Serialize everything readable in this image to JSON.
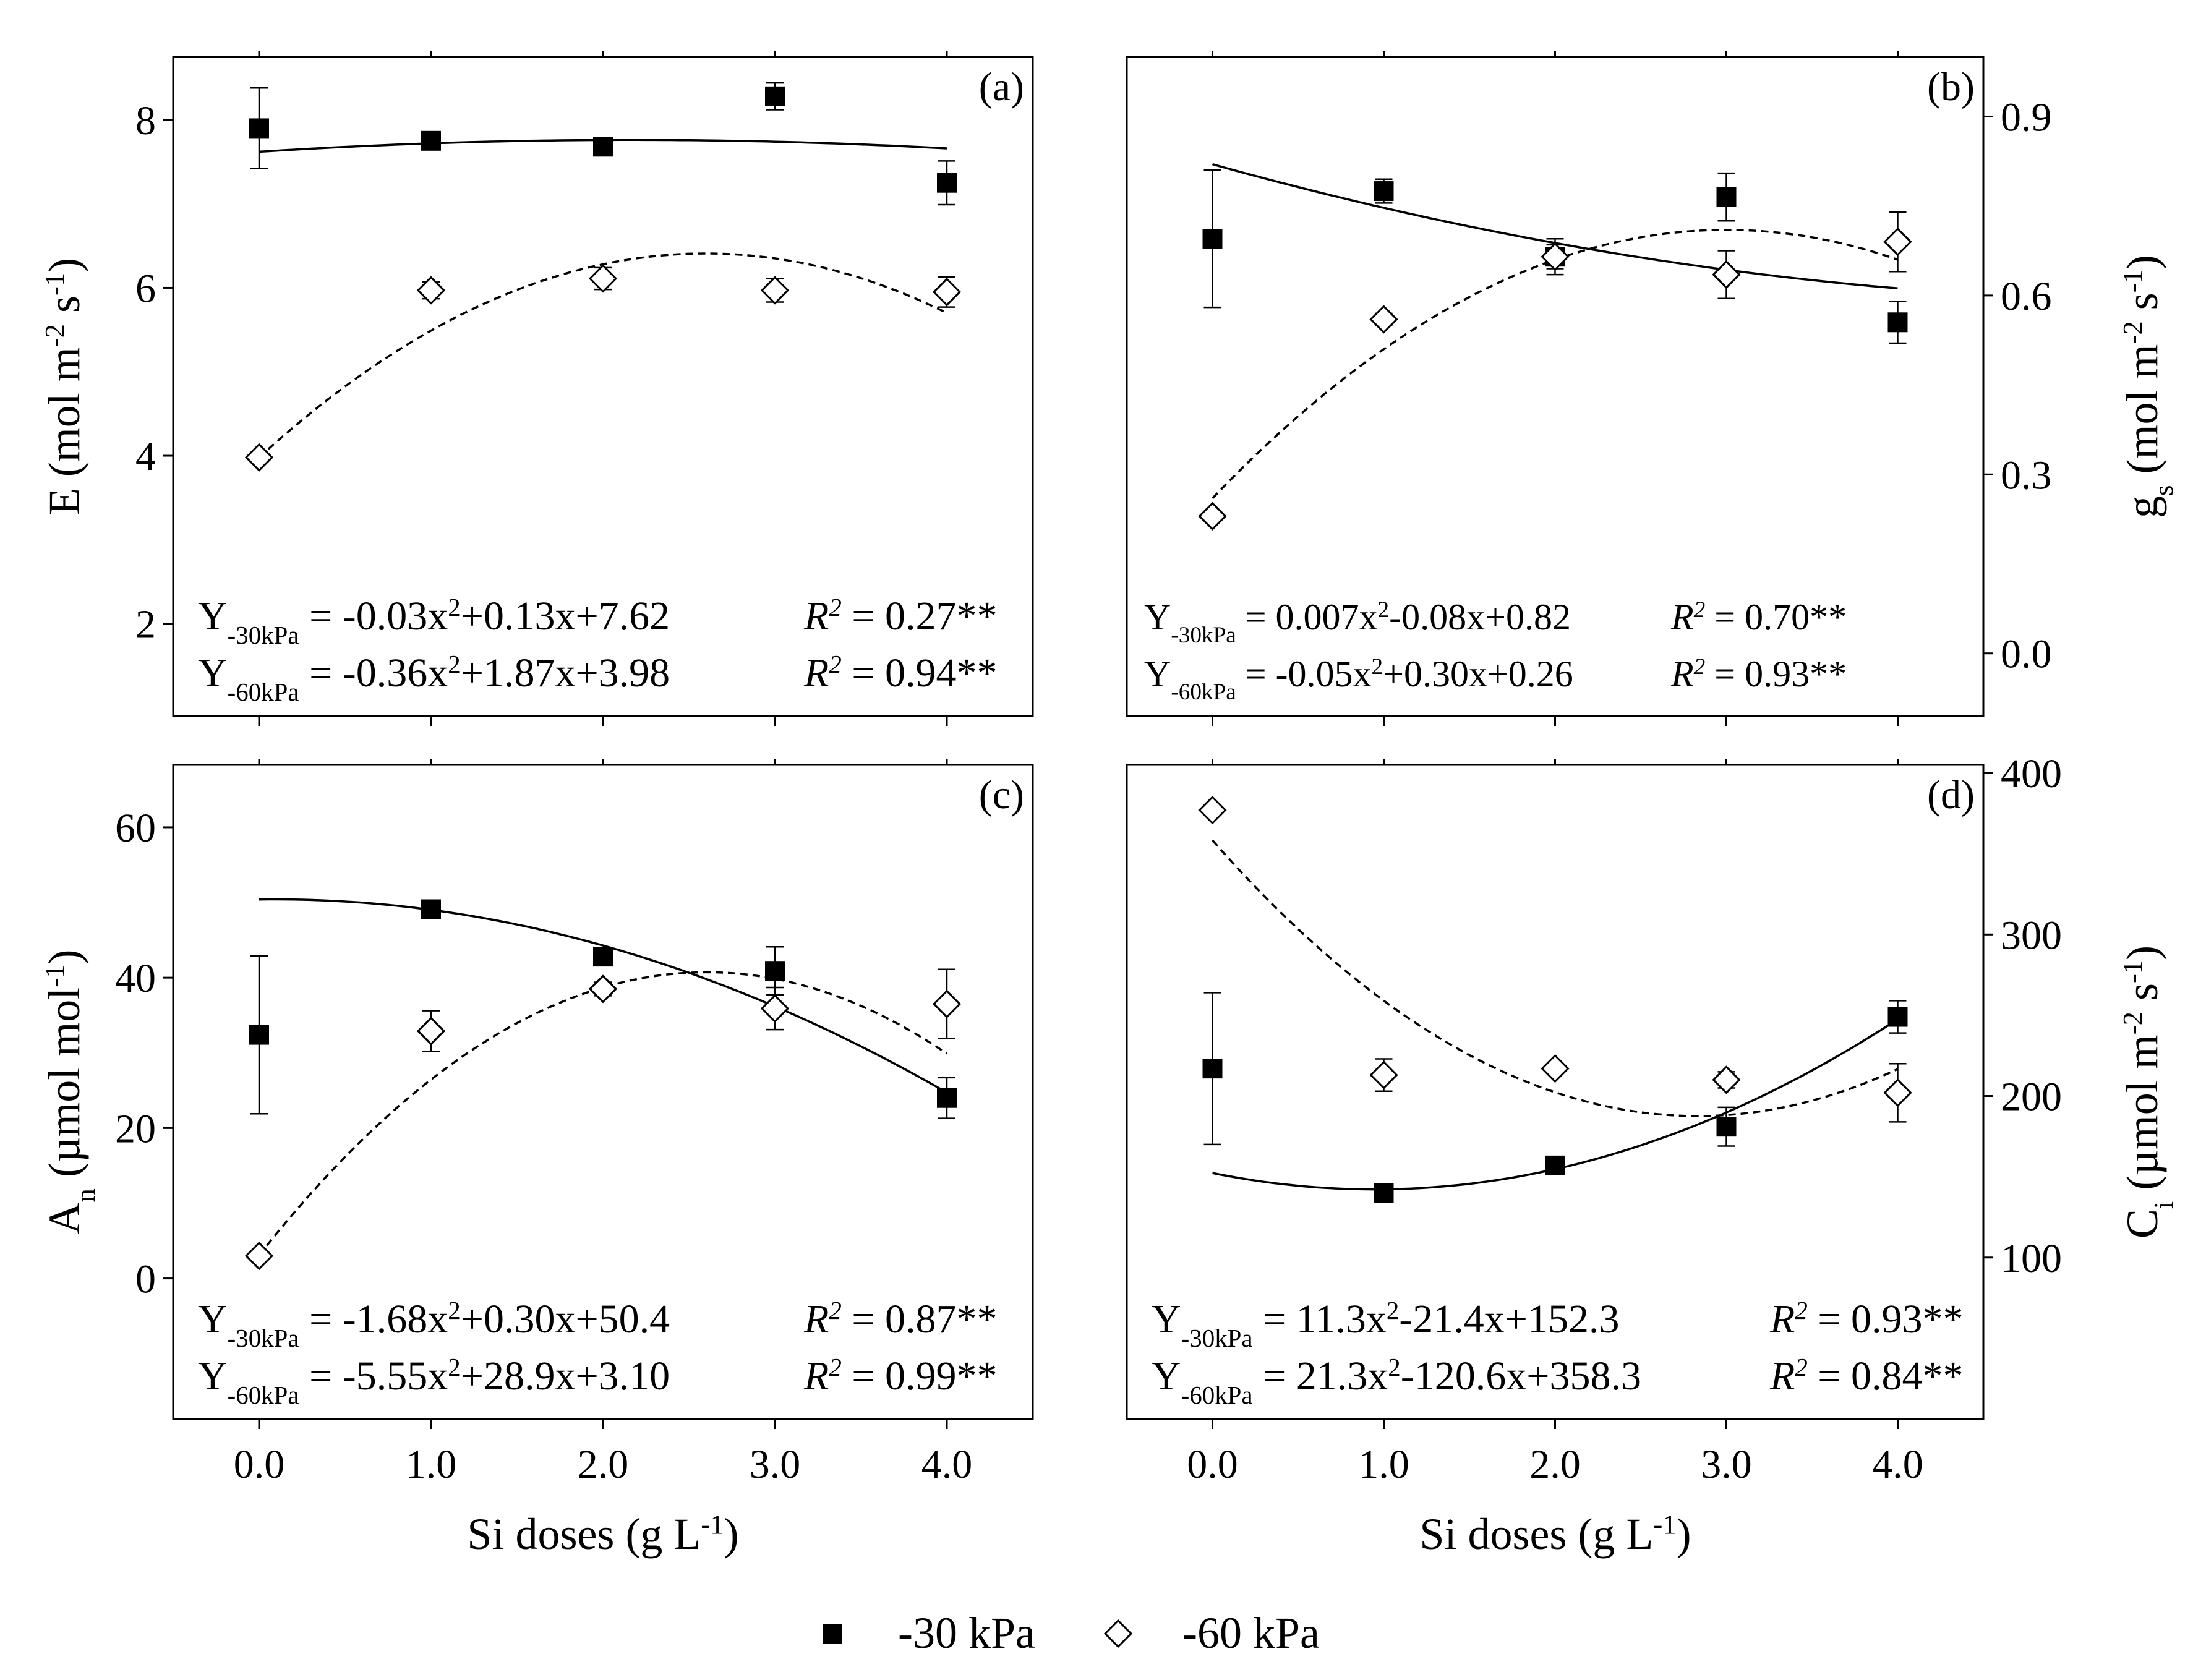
{
  "figure": {
    "legend": [
      {
        "label": "-30 kPa",
        "marker": "filled-square"
      },
      {
        "label": "-60 kPa",
        "marker": "open-diamond"
      }
    ],
    "xlabel": {
      "main": "Si doses (g L",
      "sup": "-1",
      "close": ")"
    },
    "x_ticks": [
      "0.0",
      "1.0",
      "2.0",
      "3.0",
      "4.0"
    ]
  },
  "chart_data": [
    {
      "type": "scatter",
      "panel": "(a)",
      "ylabel_parts": [
        "E (mol m",
        "-2",
        " s",
        "-1",
        ")"
      ],
      "xlim": [
        -0.5,
        4.5
      ],
      "ylim": [
        0.9,
        8.75
      ],
      "x": [
        0,
        1,
        2,
        3,
        4
      ],
      "y_ticks": [
        "2",
        "4",
        "6",
        "8"
      ],
      "y_tick_values": [
        2,
        4,
        6,
        8
      ],
      "series": [
        {
          "name": "-30 kPa",
          "values": [
            7.9,
            7.75,
            7.68,
            8.28,
            7.25
          ],
          "errors": [
            0.48,
            0.06,
            0.06,
            0.16,
            0.26
          ],
          "fit": [
            -0.03,
            0.13,
            7.62
          ]
        },
        {
          "name": "-60 kPa",
          "values": [
            3.98,
            5.97,
            6.11,
            5.97,
            5.95
          ],
          "errors": [
            0.05,
            0.1,
            0.13,
            0.14,
            0.18
          ],
          "fit": [
            -0.36,
            1.87,
            3.98
          ]
        }
      ],
      "equations": [
        {
          "pre": "Y",
          "sub": "-30kPa",
          "eq": " = -0.03x",
          "sup": "2",
          "post": "+0.13x+7.62",
          "r2_value": " = 0.27**"
        },
        {
          "pre": "Y",
          "sub": "-60kPa",
          "eq": " = -0.36x",
          "sup": "2",
          "post": "+1.87x+3.98",
          "r2_value": " = 0.94**"
        }
      ]
    },
    {
      "type": "scatter",
      "panel": "(b)",
      "ylabel_parts": [
        "g",
        "s",
        " (mol m",
        "-2",
        " s",
        "-1",
        ")"
      ],
      "xlim": [
        -0.5,
        4.5
      ],
      "ylim": [
        -0.105,
        1.0
      ],
      "x": [
        0,
        1,
        2,
        3,
        4
      ],
      "y_ticks": [
        "0.0",
        "0.3",
        "0.6",
        "0.9"
      ],
      "y_tick_values": [
        0.0,
        0.3,
        0.6,
        0.9
      ],
      "series": [
        {
          "name": "-30 kPa",
          "values": [
            0.695,
            0.775,
            0.665,
            0.765,
            0.555
          ],
          "errors": [
            0.115,
            0.02,
            0.02,
            0.04,
            0.035
          ],
          "fit": [
            0.007,
            -0.08,
            0.82
          ]
        },
        {
          "name": "-60 kPa",
          "values": [
            0.23,
            0.56,
            0.665,
            0.635,
            0.69
          ],
          "errors": [
            0.0,
            0.01,
            0.03,
            0.04,
            0.05
          ],
          "fit": [
            -0.05,
            0.3,
            0.26
          ]
        }
      ],
      "equations": [
        {
          "pre": "Y",
          "sub": "-30kPa",
          "eq": " = 0.007x",
          "sup": "2",
          "post": "-0.08x+0.82",
          "r2_value": " = 0.70**"
        },
        {
          "pre": "Y",
          "sub": "-60kPa",
          "eq": " = -0.05x",
          "sup": "2",
          "post": "+0.30x+0.26",
          "r2_value": " = 0.93**"
        }
      ]
    },
    {
      "type": "scatter",
      "panel": "(c)",
      "ylabel_parts": [
        "A",
        "n",
        " (µmol mol",
        "-1",
        ")"
      ],
      "xlim": [
        -0.5,
        4.5
      ],
      "ylim": [
        -18.7,
        68.3
      ],
      "x": [
        0,
        1,
        2,
        3,
        4
      ],
      "y_ticks": [
        "0",
        "20",
        "40",
        "60"
      ],
      "y_tick_values": [
        0,
        20,
        40,
        60
      ],
      "series": [
        {
          "name": "-30 kPa",
          "values": [
            32.4,
            49.1,
            42.8,
            40.9,
            24.0
          ],
          "errors": [
            10.5,
            0.5,
            1.2,
            3.2,
            2.7
          ],
          "fit": [
            -1.68,
            0.3,
            50.4
          ]
        },
        {
          "name": "-60 kPa",
          "values": [
            3.0,
            32.9,
            38.5,
            35.9,
            36.5
          ],
          "errors": [
            0.4,
            2.7,
            0.9,
            2.8,
            4.6
          ],
          "fit": [
            -5.55,
            28.9,
            3.1
          ]
        }
      ],
      "equations": [
        {
          "pre": "Y",
          "sub": "-30kPa",
          "eq": " = -1.68x",
          "sup": "2",
          "post": "+0.30x+50.4",
          "r2_value": " = 0.87**"
        },
        {
          "pre": "Y",
          "sub": "-60kPa",
          "eq": " = -5.55x",
          "sup": "2",
          "post": "+28.9x+3.10",
          "r2_value": " = 0.99**"
        }
      ]
    },
    {
      "type": "scatter",
      "panel": "(d)",
      "ylabel_parts": [
        "C",
        "i",
        " (µmol m",
        "-2",
        " s",
        "-1",
        ")"
      ],
      "xlim": [
        -0.5,
        4.5
      ],
      "ylim": [
        0,
        405
      ],
      "x": [
        0,
        1,
        2,
        3,
        4
      ],
      "y_ticks": [
        "100",
        "200",
        "300",
        "400"
      ],
      "y_tick_values": [
        100,
        200,
        300,
        400
      ],
      "series": [
        {
          "name": "-30 kPa",
          "values": [
            217,
            140,
            157,
            181,
            249
          ],
          "errors": [
            47,
            0,
            0,
            12,
            10
          ],
          "fit": [
            11.3,
            -21.4,
            152.3
          ]
        },
        {
          "name": "-60 kPa",
          "values": [
            377,
            213,
            217,
            210,
            202
          ],
          "errors": [
            0,
            10,
            0,
            5,
            18
          ],
          "fit": [
            21.3,
            -120.6,
            358.3
          ]
        }
      ],
      "equations": [
        {
          "pre": "Y",
          "sub": "-30kPa",
          "eq": " = 11.3x",
          "sup": "2",
          "post": "-21.4x+152.3",
          "r2_value": " = 0.93**"
        },
        {
          "pre": "Y",
          "sub": "-60kPa",
          "eq": " = 21.3x",
          "sup": "2",
          "post": "-120.6x+358.3",
          "r2_value": " = 0.84**"
        }
      ]
    }
  ]
}
